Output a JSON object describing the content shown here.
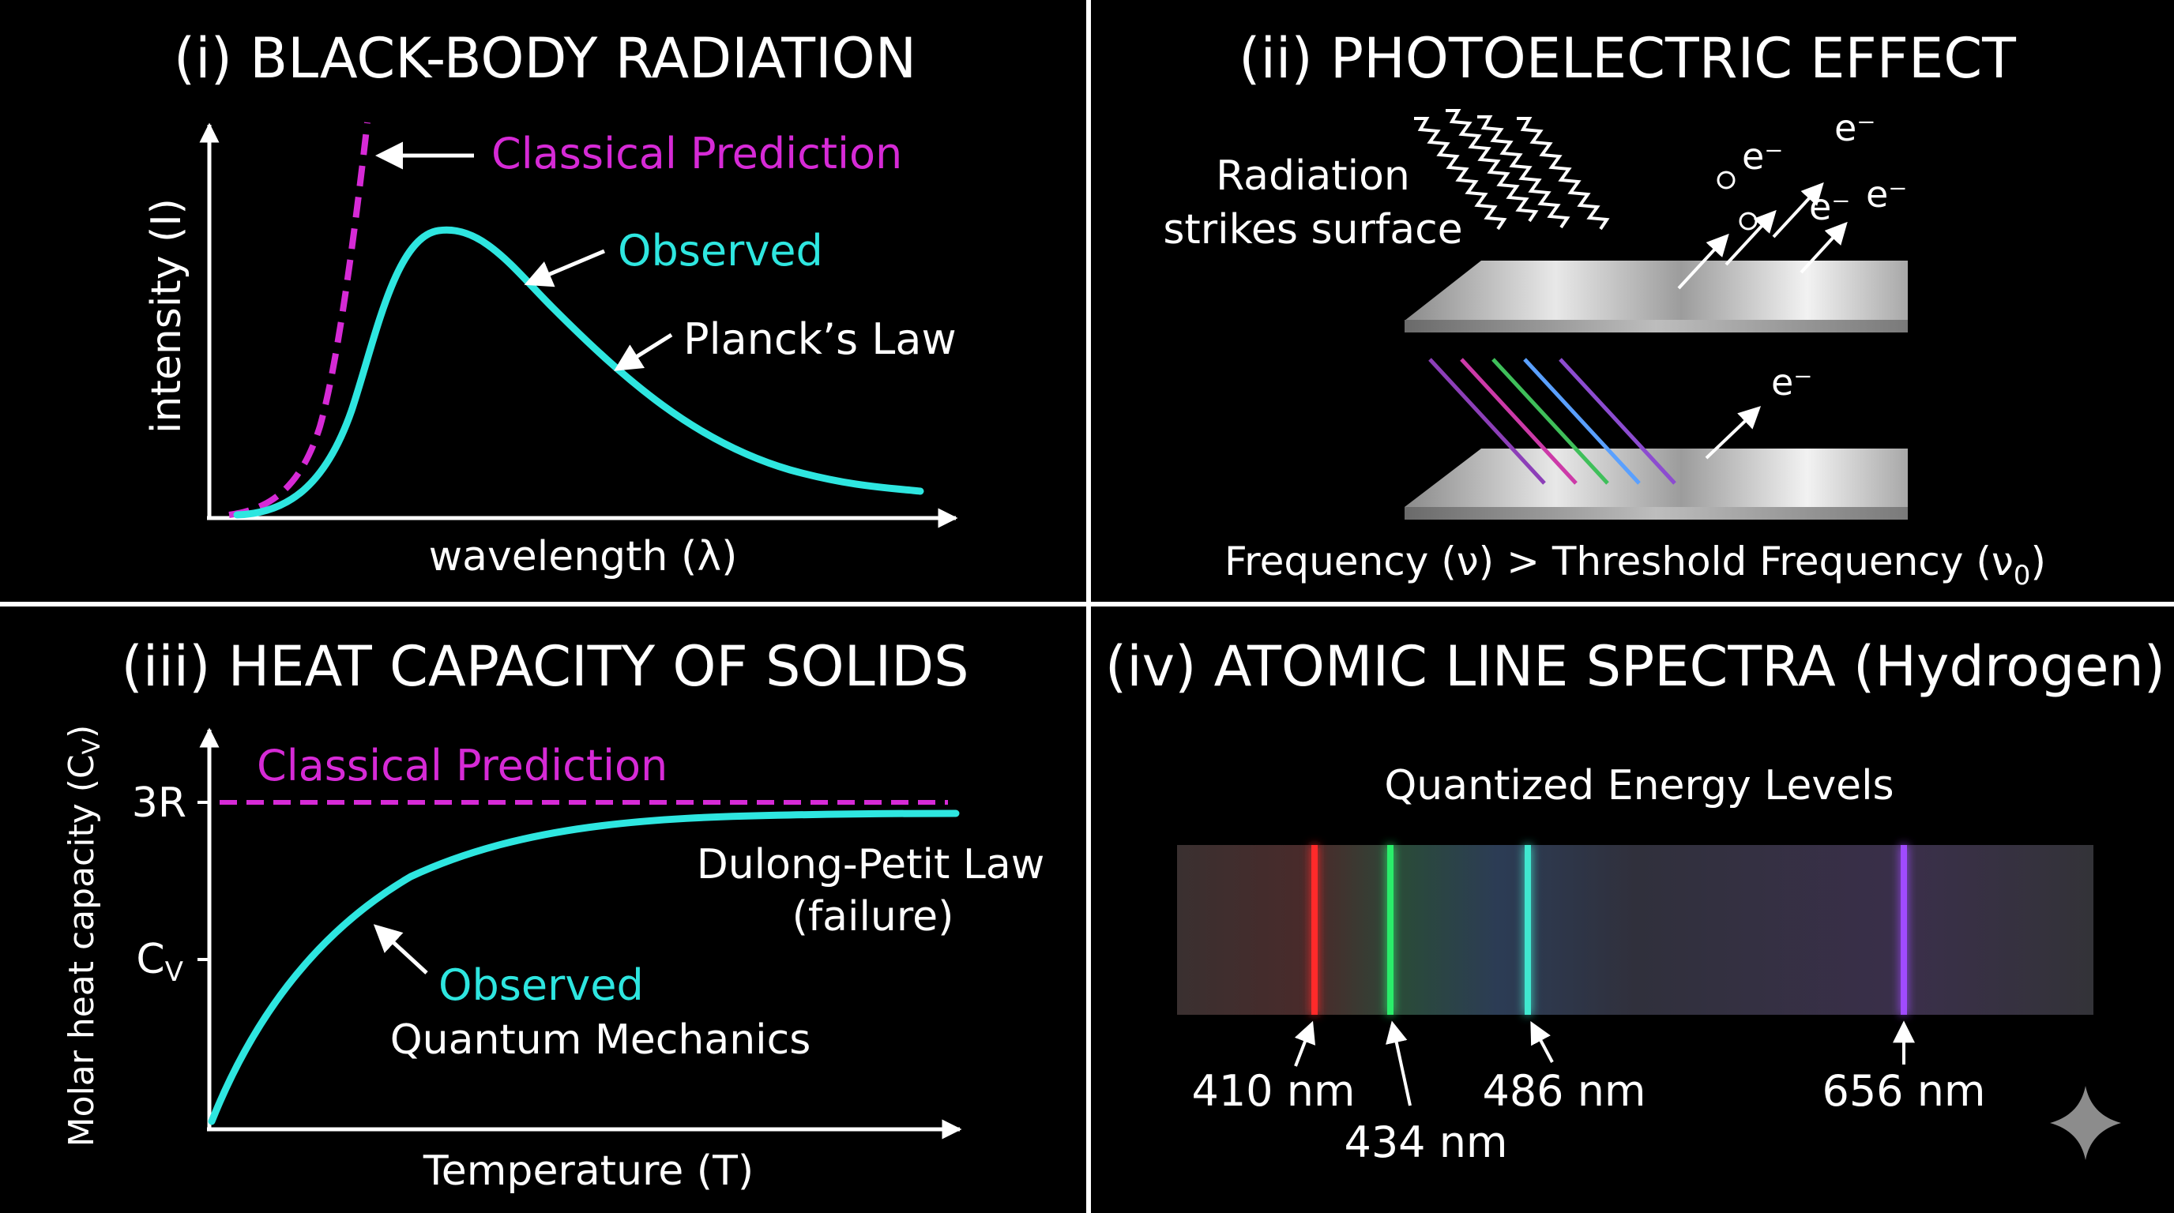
{
  "colors": {
    "background": "#000000",
    "foreground": "#ffffff",
    "observed": "#2ee6e0",
    "classical": "#d62ad6",
    "divider": "#ffffff"
  },
  "panel1": {
    "title": "(i) BLACK-BODY RADIATION",
    "ylabel": "intensity (I)",
    "xlabel": "wavelength (λ)",
    "classical_label": "Classical Prediction",
    "observed_label": "Observed",
    "planck_label": "Planck’s Law"
  },
  "panel2": {
    "title": "(ii) PHOTOELECTRIC EFFECT",
    "radiation_line1": "Radiation",
    "radiation_line2": "strikes surface",
    "electron": "e⁻",
    "condition_prefix": "Frequency (ν) > Threshold Frequency (ν",
    "condition_sub": "0",
    "condition_suffix": ")"
  },
  "panel3": {
    "title": "(iii) HEAT CAPACITY OF SOLIDS",
    "ylabel_prefix": "Molar heat capacity (C",
    "ylabel_sub": "V",
    "ylabel_suffix": ")",
    "tick_3r": "3R",
    "tick_cv_main": "C",
    "tick_cv_sub": "V",
    "xlabel": "Temperature (T)",
    "classical_label": "Classical Prediction",
    "dulong_line1": "Dulong-Petit Law",
    "dulong_line2": "(failure)",
    "observed_label": "Observed",
    "quantum_label": "Quantum Mechanics"
  },
  "panel4": {
    "title": "(iv) ATOMIC LINE SPECTRA (Hydrogen)",
    "subtitle": "Quantized Energy Levels",
    "lines": [
      {
        "label": "410 nm",
        "color": "#ff2a2a"
      },
      {
        "label": "434 nm",
        "color": "#2aee6a"
      },
      {
        "label": "486 nm",
        "color": "#3fe8cf"
      },
      {
        "label": "656 nm",
        "color": "#a04cff"
      }
    ]
  }
}
